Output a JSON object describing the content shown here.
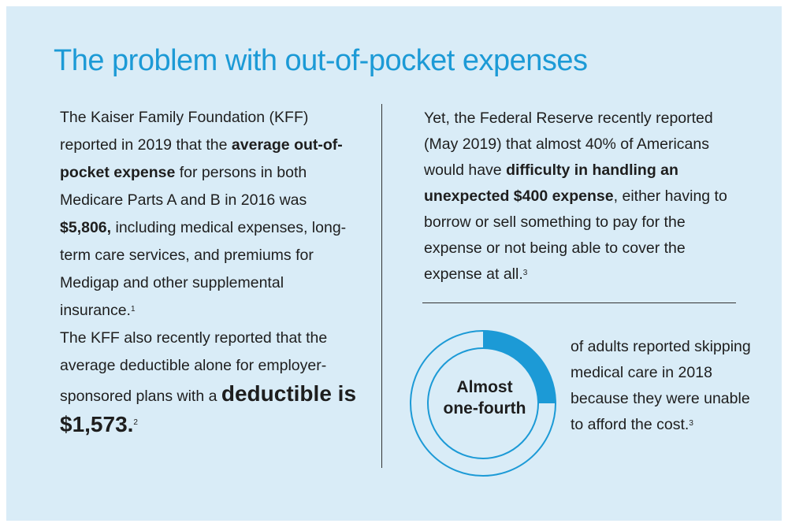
{
  "title": "The problem with out-of-pocket expenses",
  "left": {
    "p1_a": "The Kaiser Family Foundation (KFF) reported in 2019 that the ",
    "p1_bold": "average out-of-pocket expense",
    "p1_b": " for persons in both Medicare Parts A and B in 2016 was ",
    "p1_amount": "$5,806,",
    "p1_c": " including medical expenses, long-term care services, and premiums for Medigap and other supplemental insurance.",
    "p1_note": "1",
    "p2_a": "The KFF also recently reported that the average deductible alone for employer-sponsored plans with a ",
    "p2_big": "deductible is $1,573.",
    "p2_note": "2"
  },
  "right": {
    "p_a": "Yet, the Federal Reserve recently reported (May 2019) that almost 40% of Americans would have ",
    "p_bold": "difficulty in handling an unexpected $400 expense",
    "p_b": ", either having to borrow or sell something to pay for the expense or not being able to cover the expense at all.",
    "p_note": "3"
  },
  "stat": {
    "donut_label_1": "Almost",
    "donut_label_2": "one-fourth",
    "fraction": 0.25,
    "ring_color": "#1c9ad6",
    "text": "of adults reported skipping medical care in 2018 because they were unable to afford the cost.",
    "note": "3"
  }
}
